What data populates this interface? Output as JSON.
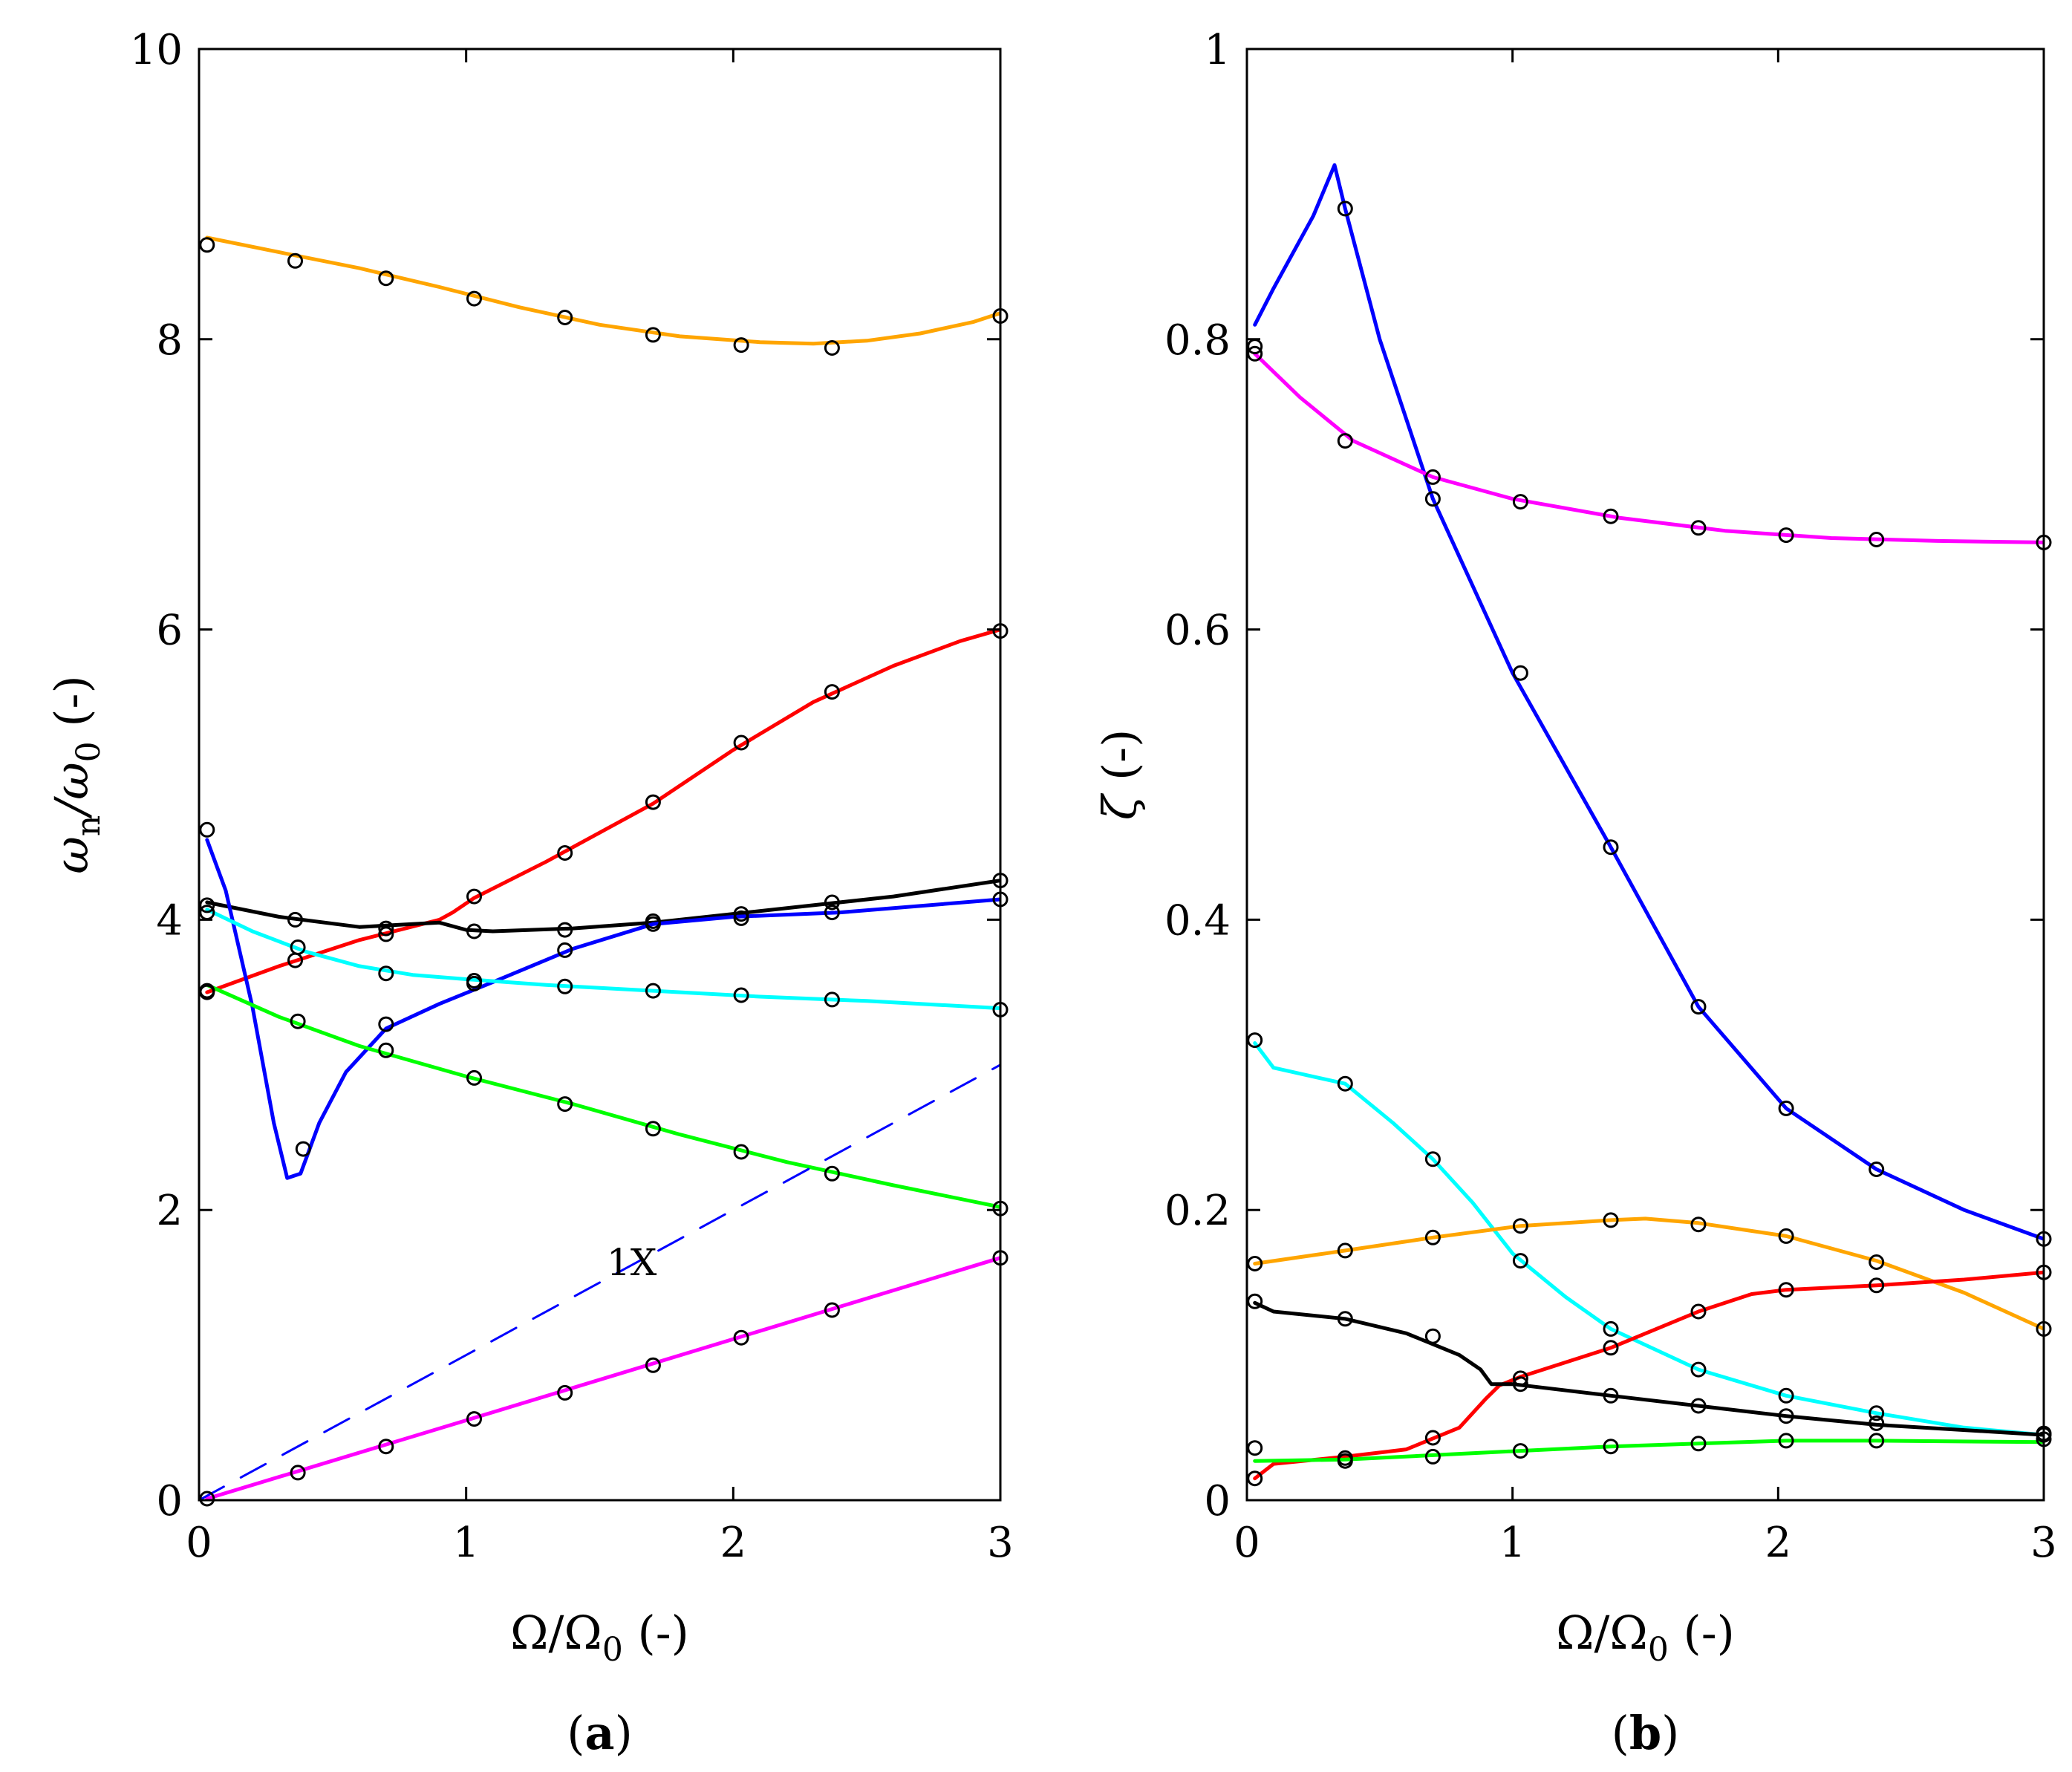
{
  "chart_data": [
    {
      "panel": "a",
      "type": "line",
      "caption": "(a)",
      "caption_letter": "a",
      "xlabel": "Ω/Ω",
      "xlabel_sub": "0",
      "xlabel_suffix": " (-)",
      "ylabel": "ω",
      "ylabel_sub1": "n",
      "ylabel_mid": "/ω",
      "ylabel_sub2": "0",
      "ylabel_suffix": " (-)",
      "xlim": [
        0,
        3
      ],
      "ylim": [
        0,
        10
      ],
      "xticks": [
        0,
        1,
        2,
        3
      ],
      "yticks": [
        0,
        2,
        4,
        6,
        8,
        10
      ],
      "xtick_labels": [
        "0",
        "1",
        "2",
        "3"
      ],
      "ytick_labels": [
        "0",
        "2",
        "4",
        "6",
        "8",
        "10"
      ],
      "annotation": {
        "text": "1X",
        "x": 1.62,
        "y": 1.55
      },
      "series": [
        {
          "name": "orange",
          "color": "#ffa500",
          "x": [
            0.03,
            0.3,
            0.6,
            0.9,
            1.2,
            1.5,
            1.8,
            2.1,
            2.3,
            2.5,
            2.7,
            2.9,
            3.0
          ],
          "y": [
            8.7,
            8.6,
            8.49,
            8.36,
            8.22,
            8.1,
            8.02,
            7.98,
            7.97,
            7.99,
            8.04,
            8.12,
            8.18
          ],
          "mx": [
            0.03,
            0.36,
            0.7,
            1.03,
            1.37,
            1.7,
            2.03,
            2.37,
            3.0
          ],
          "my": [
            8.65,
            8.54,
            8.42,
            8.28,
            8.15,
            8.03,
            7.96,
            7.94,
            8.16
          ]
        },
        {
          "name": "red",
          "color": "#ff0000",
          "x": [
            0.03,
            0.3,
            0.6,
            0.9,
            0.95,
            1.03,
            1.3,
            1.7,
            2.0,
            2.3,
            2.6,
            2.85,
            3.0
          ],
          "y": [
            3.5,
            3.68,
            3.86,
            4.0,
            4.05,
            4.15,
            4.4,
            4.8,
            5.17,
            5.5,
            5.75,
            5.92,
            6.0
          ],
          "mx": [
            0.03,
            0.36,
            0.7,
            1.03,
            1.37,
            1.7,
            2.03,
            2.37,
            3.0
          ],
          "my": [
            3.5,
            3.72,
            3.9,
            4.16,
            4.46,
            4.81,
            5.22,
            5.57,
            5.99
          ]
        },
        {
          "name": "black",
          "color": "#000000",
          "x": [
            0.03,
            0.3,
            0.6,
            0.9,
            1.0,
            1.1,
            1.4,
            1.7,
            2.0,
            2.3,
            2.6,
            3.0
          ],
          "y": [
            4.12,
            4.02,
            3.95,
            3.98,
            3.93,
            3.92,
            3.94,
            3.98,
            4.04,
            4.1,
            4.16,
            4.27
          ],
          "mx": [
            0.03,
            0.36,
            0.7,
            1.03,
            1.37,
            1.7,
            2.03,
            2.37,
            3.0
          ],
          "my": [
            4.1,
            4.0,
            3.94,
            3.92,
            3.93,
            3.99,
            4.04,
            4.12,
            4.27
          ]
        },
        {
          "name": "blue",
          "color": "#0000ff",
          "x": [
            0.03,
            0.1,
            0.2,
            0.28,
            0.33,
            0.38,
            0.45,
            0.55,
            0.7,
            0.9,
            1.1,
            1.4,
            1.7,
            2.0,
            2.4,
            3.0
          ],
          "y": [
            4.55,
            4.2,
            3.4,
            2.6,
            2.22,
            2.25,
            2.6,
            2.95,
            3.25,
            3.42,
            3.57,
            3.8,
            3.97,
            4.02,
            4.05,
            4.14
          ],
          "mx": [
            0.03,
            0.39,
            0.7,
            1.03,
            1.37,
            1.7,
            2.03,
            2.37,
            3.0
          ],
          "my": [
            4.62,
            2.42,
            3.28,
            3.56,
            3.79,
            3.97,
            4.01,
            4.05,
            4.14
          ]
        },
        {
          "name": "cyan",
          "color": "#00ffff",
          "x": [
            0.03,
            0.2,
            0.4,
            0.6,
            0.8,
            1.0,
            1.3,
            1.7,
            2.1,
            2.5,
            3.0
          ],
          "y": [
            4.07,
            3.92,
            3.78,
            3.68,
            3.62,
            3.59,
            3.55,
            3.51,
            3.47,
            3.44,
            3.39
          ],
          "mx": [
            0.03,
            0.37,
            0.7,
            1.03,
            1.37,
            1.7,
            2.03,
            2.37,
            3.0
          ],
          "my": [
            4.05,
            3.81,
            3.63,
            3.58,
            3.54,
            3.51,
            3.48,
            3.45,
            3.38
          ]
        },
        {
          "name": "green",
          "color": "#00ff00",
          "x": [
            0.03,
            0.3,
            0.6,
            1.0,
            1.4,
            1.8,
            2.2,
            2.6,
            3.0
          ],
          "y": [
            3.55,
            3.33,
            3.13,
            2.92,
            2.73,
            2.52,
            2.33,
            2.17,
            2.02
          ],
          "mx": [
            0.03,
            0.37,
            0.7,
            1.03,
            1.37,
            1.7,
            2.03,
            2.37,
            3.0
          ],
          "my": [
            3.51,
            3.3,
            3.1,
            2.91,
            2.73,
            2.56,
            2.4,
            2.25,
            2.01
          ]
        },
        {
          "name": "magenta",
          "color": "#ff00ff",
          "x": [
            0.03,
            1.0,
            2.0,
            3.0
          ],
          "y": [
            0.01,
            0.55,
            1.11,
            1.67
          ],
          "mx": [
            0.03,
            0.37,
            0.7,
            1.03,
            1.37,
            1.7,
            2.03,
            2.37,
            3.0
          ],
          "my": [
            0.01,
            0.19,
            0.37,
            0.56,
            0.74,
            0.93,
            1.12,
            1.31,
            1.67
          ]
        },
        {
          "name": "1X",
          "color": "#0000ff",
          "dashed": true,
          "x": [
            0,
            3
          ],
          "y": [
            0,
            3
          ]
        }
      ]
    },
    {
      "panel": "b",
      "type": "line",
      "caption": "(b)",
      "caption_letter": "b",
      "xlabel": "Ω/Ω",
      "xlabel_sub": "0",
      "xlabel_suffix": " (-)",
      "ylabel": "ζ",
      "ylabel_suffix": " (-)",
      "xlim": [
        0,
        3
      ],
      "ylim": [
        0,
        1
      ],
      "xticks": [
        0,
        1,
        2,
        3
      ],
      "yticks": [
        0,
        0.2,
        0.4,
        0.6,
        0.8,
        1
      ],
      "xtick_labels": [
        "0",
        "1",
        "2",
        "3"
      ],
      "ytick_labels": [
        "0",
        "0.2",
        "0.4",
        "0.6",
        "0.8",
        "1"
      ],
      "series": [
        {
          "name": "blue",
          "color": "#0000ff",
          "x": [
            0.03,
            0.1,
            0.25,
            0.33,
            0.37,
            0.5,
            0.7,
            1.0,
            1.37,
            1.7,
            2.03,
            2.37,
            2.7,
            3.0
          ],
          "y": [
            0.81,
            0.835,
            0.885,
            0.92,
            0.89,
            0.8,
            0.69,
            0.57,
            0.45,
            0.34,
            0.27,
            0.228,
            0.2,
            0.18
          ],
          "mx": [
            0.03,
            0.37,
            0.7,
            1.03,
            1.37,
            1.7,
            2.03,
            2.37,
            3.0
          ],
          "my": [
            0.79,
            0.89,
            0.69,
            0.57,
            0.45,
            0.34,
            0.27,
            0.228,
            0.18
          ]
        },
        {
          "name": "magenta",
          "color": "#ff00ff",
          "x": [
            0.03,
            0.2,
            0.4,
            0.7,
            1.0,
            1.4,
            1.8,
            2.2,
            2.6,
            3.0
          ],
          "y": [
            0.79,
            0.76,
            0.73,
            0.705,
            0.69,
            0.677,
            0.668,
            0.663,
            0.661,
            0.66
          ],
          "mx": [
            0.03,
            0.37,
            0.7,
            1.03,
            1.37,
            1.7,
            2.03,
            2.37,
            3.0
          ],
          "my": [
            0.795,
            0.73,
            0.705,
            0.688,
            0.678,
            0.67,
            0.665,
            0.662,
            0.66
          ]
        },
        {
          "name": "cyan",
          "color": "#00ffff",
          "x": [
            0.03,
            0.1,
            0.37,
            0.55,
            0.7,
            0.85,
            1.0,
            1.2,
            1.37,
            1.7,
            2.03,
            2.37,
            2.7,
            3.0
          ],
          "y": [
            0.315,
            0.298,
            0.287,
            0.26,
            0.235,
            0.205,
            0.17,
            0.14,
            0.118,
            0.09,
            0.072,
            0.06,
            0.05,
            0.045
          ],
          "mx": [
            0.03,
            0.37,
            0.7,
            1.03,
            1.37,
            1.7,
            2.03,
            2.37,
            3.0
          ],
          "my": [
            0.317,
            0.287,
            0.235,
            0.165,
            0.118,
            0.09,
            0.072,
            0.06,
            0.046
          ]
        },
        {
          "name": "orange",
          "color": "#ffa500",
          "x": [
            0.03,
            0.37,
            0.7,
            1.03,
            1.37,
            1.5,
            1.7,
            2.03,
            2.37,
            2.7,
            3.0
          ],
          "y": [
            0.163,
            0.172,
            0.181,
            0.189,
            0.193,
            0.194,
            0.191,
            0.182,
            0.165,
            0.143,
            0.118
          ],
          "mx": [
            0.03,
            0.37,
            0.7,
            1.03,
            1.37,
            1.7,
            2.03,
            2.37,
            3.0
          ],
          "my": [
            0.163,
            0.172,
            0.181,
            0.189,
            0.193,
            0.19,
            0.182,
            0.164,
            0.118
          ]
        },
        {
          "name": "red",
          "color": "#ff0000",
          "x": [
            0.03,
            0.1,
            0.37,
            0.6,
            0.8,
            0.9,
            0.95,
            1.03,
            1.37,
            1.7,
            1.9,
            2.03,
            2.37,
            2.7,
            3.0
          ],
          "y": [
            0.015,
            0.025,
            0.03,
            0.035,
            0.05,
            0.07,
            0.079,
            0.085,
            0.105,
            0.13,
            0.142,
            0.145,
            0.148,
            0.152,
            0.157
          ],
          "mx": [
            0.03,
            0.37,
            0.7,
            1.03,
            1.37,
            1.7,
            2.03,
            2.37,
            3.0
          ],
          "my": [
            0.015,
            0.029,
            0.043,
            0.084,
            0.105,
            0.13,
            0.145,
            0.148,
            0.157
          ]
        },
        {
          "name": "black",
          "color": "#000000",
          "x": [
            0.03,
            0.1,
            0.37,
            0.6,
            0.8,
            0.88,
            0.92,
            1.0,
            1.37,
            1.7,
            2.03,
            2.37,
            3.0
          ],
          "y": [
            0.136,
            0.13,
            0.125,
            0.115,
            0.1,
            0.09,
            0.08,
            0.08,
            0.072,
            0.065,
            0.058,
            0.052,
            0.045
          ],
          "mx": [
            0.03,
            0.37,
            0.7,
            1.03,
            1.37,
            1.7,
            2.03,
            2.37,
            3.0
          ],
          "my": [
            0.137,
            0.125,
            0.113,
            0.08,
            0.072,
            0.065,
            0.058,
            0.053,
            0.045
          ]
        },
        {
          "name": "green",
          "color": "#00ff00",
          "x": [
            0.03,
            0.37,
            0.7,
            1.03,
            1.37,
            1.7,
            2.03,
            2.37,
            3.0
          ],
          "y": [
            0.027,
            0.028,
            0.031,
            0.034,
            0.037,
            0.039,
            0.041,
            0.041,
            0.04
          ],
          "mx": [
            0.03,
            0.37,
            0.7,
            1.03,
            1.37,
            1.7,
            2.03,
            2.37,
            3.0
          ],
          "my": [
            0.036,
            0.027,
            0.03,
            0.034,
            0.037,
            0.039,
            0.041,
            0.041,
            0.042
          ]
        }
      ]
    }
  ]
}
